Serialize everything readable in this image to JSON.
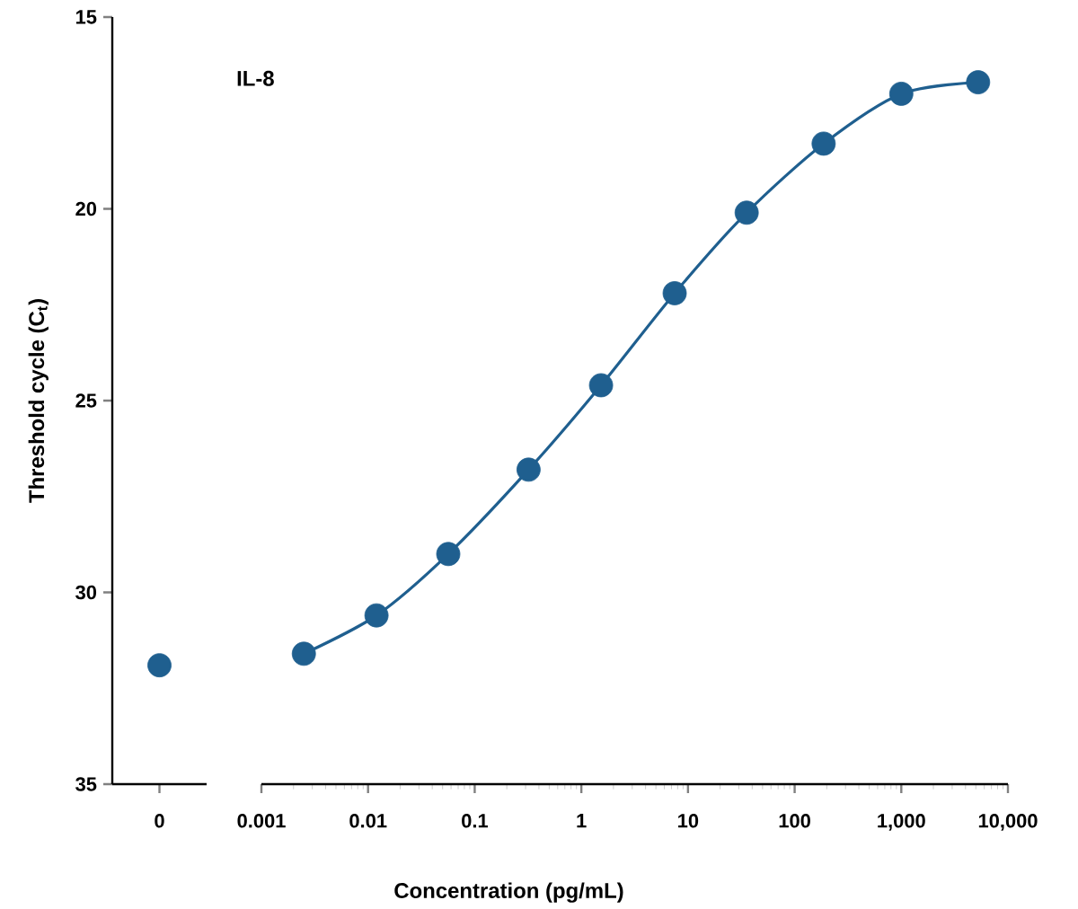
{
  "chart_data": [
    {
      "type": "scatter",
      "categories": [
        "0"
      ],
      "ylim": [
        35,
        15
      ],
      "yticks": [
        15,
        20,
        25,
        30,
        35
      ],
      "ylabel": "Threshold cycle (C$_{t}$)",
      "series": [
        {
          "color": "#1f5f8f",
          "marker": "circle",
          "values": [
            31.9
          ]
        }
      ]
    },
    {
      "type": "scatter",
      "log": "x",
      "xlim": [
        0.001,
        10000
      ],
      "xticks": [
        0.001,
        0.01,
        0.1,
        1,
        10,
        100,
        {
          "value": 1000,
          "label": "1,000"
        },
        {
          "value": 10000,
          "label": "10,000"
        }
      ],
      "ylim": [
        35,
        15
      ],
      "tick_labels": "x",
      "xlabel": "Concentration (pg/mL)",
      "annotations": [
        "IL-8"
      ],
      "series": [
        {
          "color": "#1f5f8f",
          "marker": "circle",
          "x": [
            0.0025,
            0.012,
            0.0565,
            0.32,
            1.53,
            7.5,
            35.5,
            187,
            1000,
            5250
          ],
          "values": [
            31.6,
            30.6,
            29.0,
            26.8,
            24.6,
            22.2,
            20.1,
            18.3,
            17.0,
            16.7
          ]
        },
        {
          "type": "line",
          "marker": "none",
          "color": "#1f5f8f",
          "x": [
            0.0025,
            0.012,
            0.0565,
            0.32,
            1.53,
            7.5,
            35.5,
            187,
            1000,
            5250
          ],
          "values": [
            31.6,
            30.6,
            29.0,
            26.8,
            24.6,
            22.2,
            20.1,
            18.3,
            17.0,
            16.7
          ]
        }
      ]
    }
  ]
}
